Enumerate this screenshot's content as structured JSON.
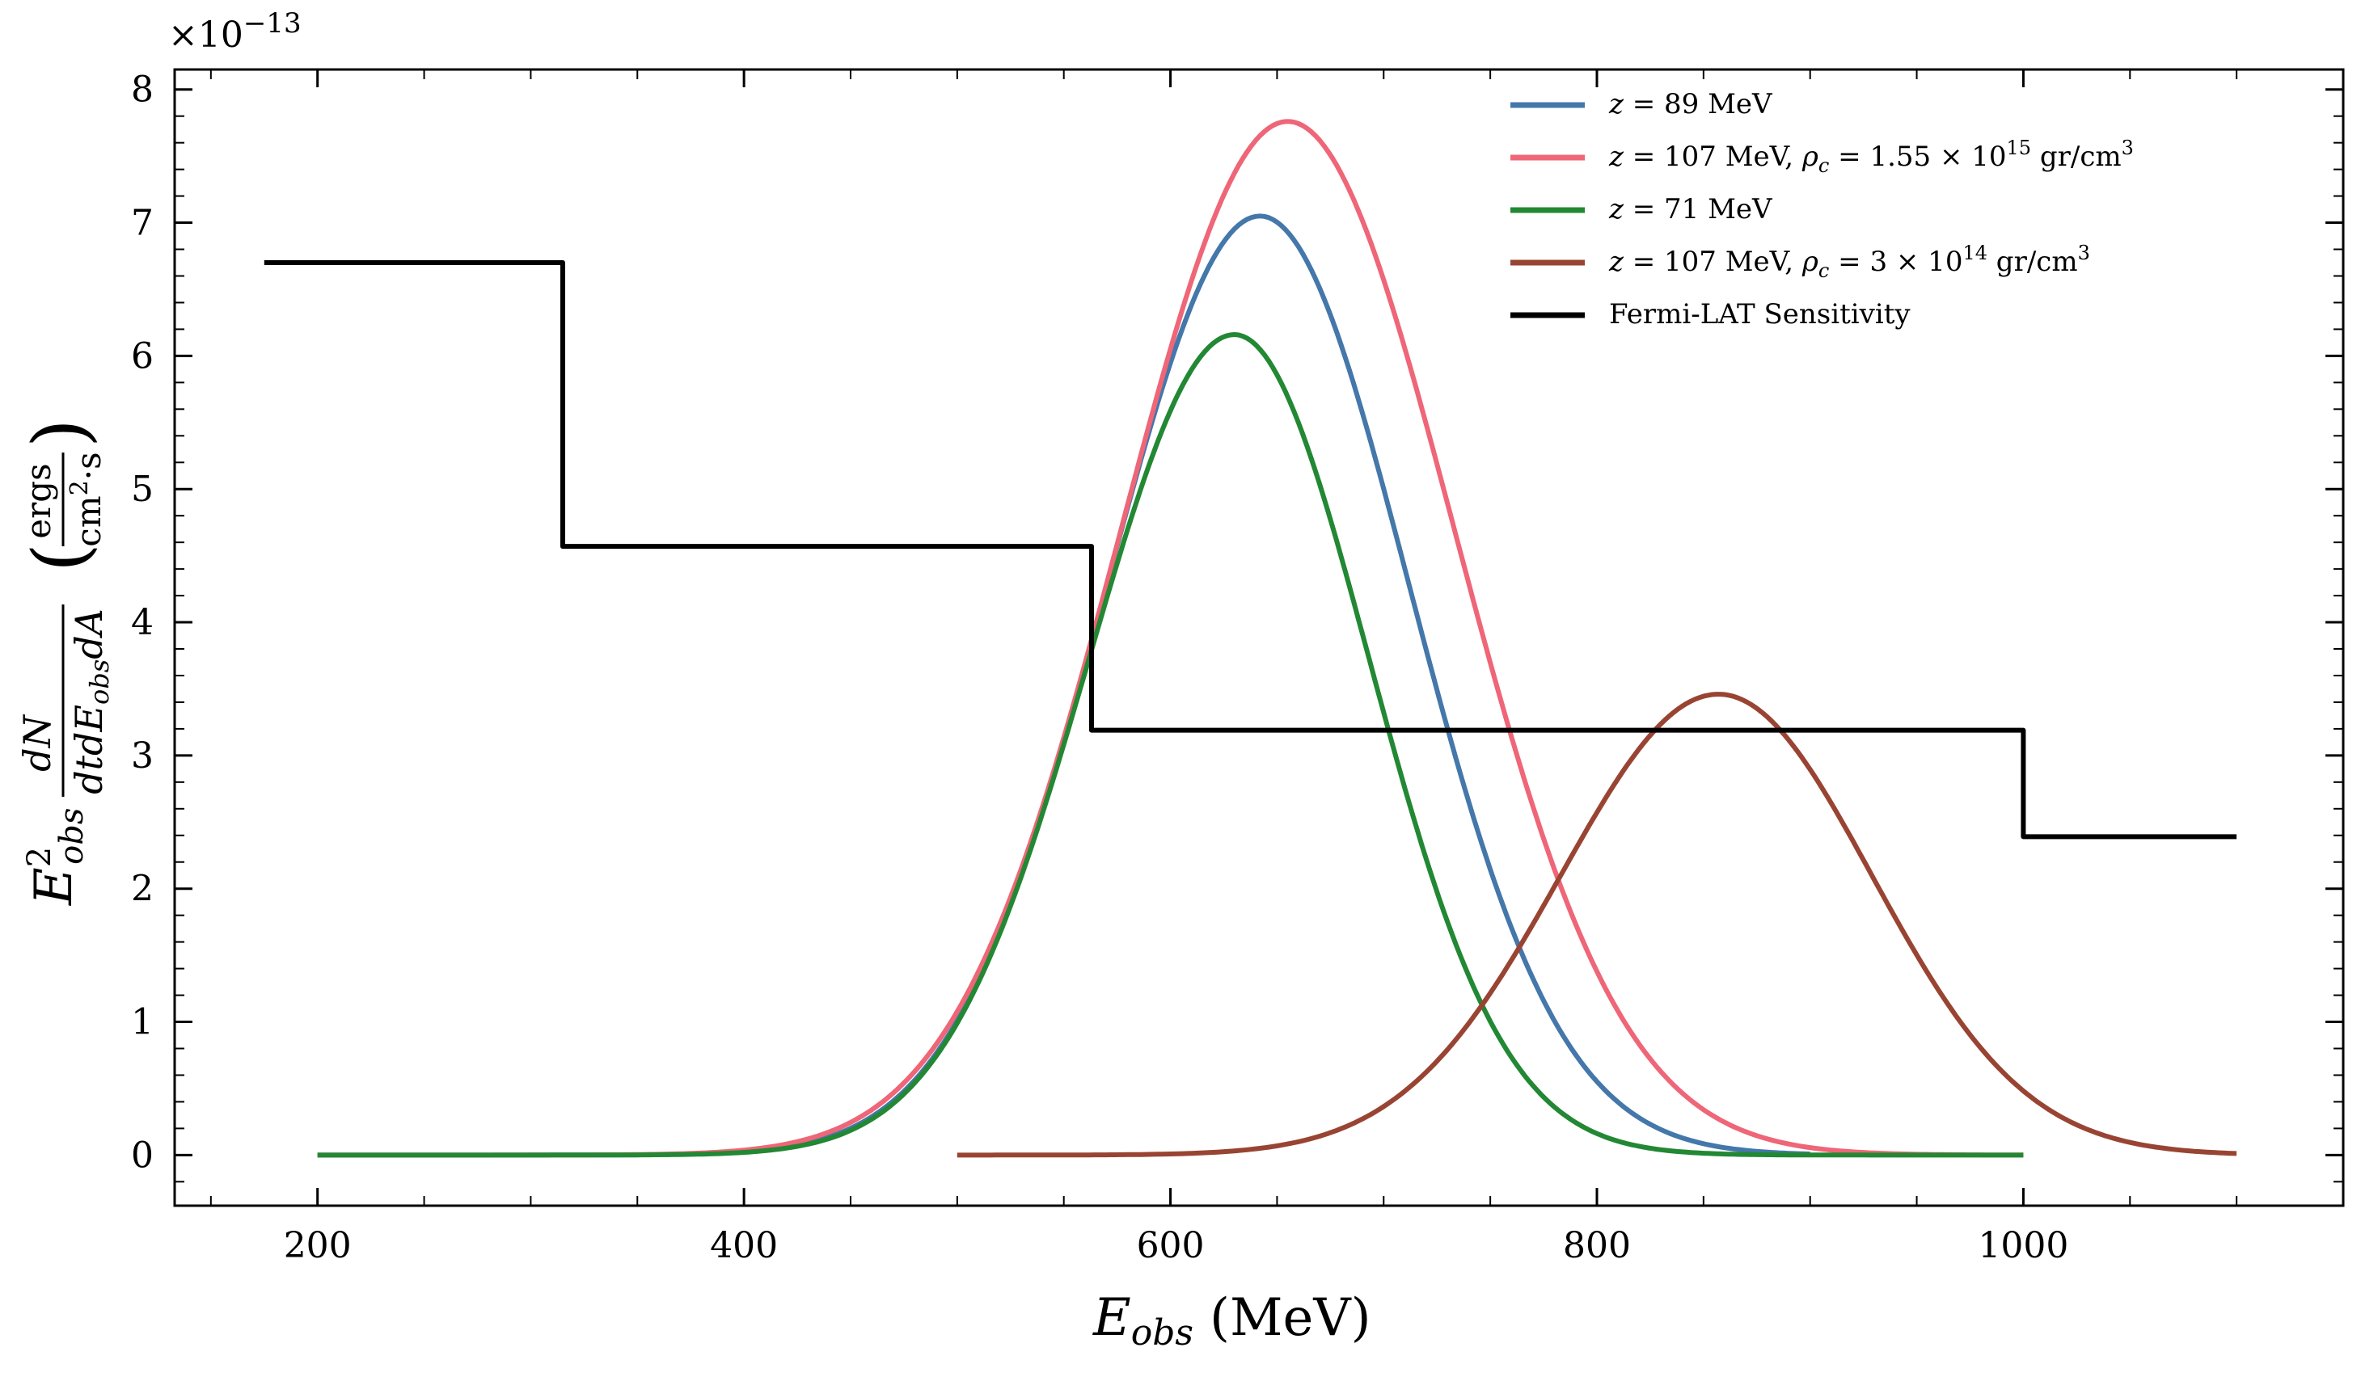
{
  "chart_data": {
    "type": "line",
    "title": "",
    "xlabel": "E_obs (MeV)",
    "xlabel_main": "E",
    "xlabel_sub": "obs",
    "xlabel_unit": "(MeV)",
    "ylabel_parts": {
      "main": "E",
      "sup": "2",
      "sub": "obs",
      "frac_num": "dN",
      "frac_den": "dtdE",
      "frac_den_sub": "obs",
      "frac_den_tail": "dA",
      "unit_num": "ergs",
      "unit_den_a": "cm",
      "unit_den_sup": "2",
      "unit_den_b": "·s"
    },
    "y_multiplier_base": "×10",
    "y_multiplier_exp": "−13",
    "xlim": [
      133,
      1150
    ],
    "ylim": [
      -0.38,
      8.15
    ],
    "x_ticks": [
      200,
      400,
      600,
      800,
      1000
    ],
    "x_tick_labels": [
      "200",
      "400",
      "600",
      "800",
      "1000"
    ],
    "y_ticks": [
      0,
      1,
      2,
      3,
      4,
      5,
      6,
      7,
      8
    ],
    "y_tick_labels": [
      "0",
      "1",
      "2",
      "3",
      "4",
      "5",
      "6",
      "7",
      "8"
    ],
    "grid": false,
    "legend_position": "top-right",
    "series": [
      {
        "name": "z = 89 MeV",
        "legend": {
          "var": "z",
          "text": " = 89 MeV"
        },
        "color": "#4477aa",
        "kind": "gauss",
        "x_range": [
          200,
          900
        ],
        "peak_x": 642,
        "peak_y": 7.05,
        "sigma_left": 72,
        "sigma_right": 70
      },
      {
        "name": "z = 107 MeV, ρc = 1.55 × 10^15 gr/cm^3",
        "legend": {
          "var": "z",
          "text": " = 107 MeV, ",
          "rho": "ρ",
          "rho_sub": "c",
          "eq": " = 1.55 × 10",
          "exp": "15",
          "unit": " gr/cm",
          "unit_sup": "3"
        },
        "color": "#ee6677",
        "kind": "gauss",
        "x_range": [
          200,
          1000
        ],
        "peak_x": 655,
        "peak_y": 7.76,
        "sigma_left": 78,
        "sigma_right": 78
      },
      {
        "name": "z = 71 MeV",
        "legend": {
          "var": "z",
          "text": " = 71 MeV"
        },
        "color": "#228833",
        "kind": "gauss",
        "x_range": [
          200,
          1000
        ],
        "peak_x": 630,
        "peak_y": 6.16,
        "sigma_left": 68,
        "sigma_right": 63
      },
      {
        "name": "z = 107 MeV, ρc = 3 × 10^14 gr/cm^3",
        "legend": {
          "var": "z",
          "text": " = 107 MeV, ",
          "rho": "ρ",
          "rho_sub": "c",
          "eq": " = 3 × 10",
          "exp": "14",
          "unit": " gr/cm",
          "unit_sup": "3"
        },
        "color": "#994433",
        "kind": "gauss",
        "x_range": [
          500,
          1100
        ],
        "peak_x": 857,
        "peak_y": 3.46,
        "sigma_left": 74,
        "sigma_right": 72
      },
      {
        "name": "Fermi-LAT Sensitivity",
        "legend": {
          "var": "",
          "text": "Fermi-LAT Sensitivity"
        },
        "color": "#000000",
        "kind": "step",
        "edges": [
          175,
          315,
          563,
          1000,
          1100
        ],
        "values": [
          6.7,
          4.57,
          3.19,
          2.39
        ]
      }
    ]
  }
}
